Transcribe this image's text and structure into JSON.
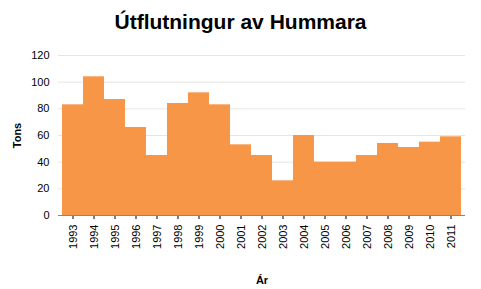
{
  "chart_data": {
    "type": "bar",
    "title": "Útflutningur av Hummara",
    "x_label": "Ár",
    "y_label": "Tons",
    "categories": [
      "1993",
      "1994",
      "1995",
      "1996",
      "1997",
      "1998",
      "1999",
      "2000",
      "2001",
      "2002",
      "2003",
      "2004",
      "2005",
      "2006",
      "2007",
      "2008",
      "2009",
      "2010",
      "2011"
    ],
    "values": [
      83,
      104,
      87,
      66,
      45,
      84,
      92,
      83,
      53,
      45,
      26,
      60,
      40,
      40,
      45,
      54,
      51,
      55,
      59
    ],
    "color": "#f79646",
    "ylim": [
      0,
      120
    ],
    "yticks": [
      0,
      20,
      40,
      60,
      80,
      100,
      120
    ],
    "grid": true
  }
}
